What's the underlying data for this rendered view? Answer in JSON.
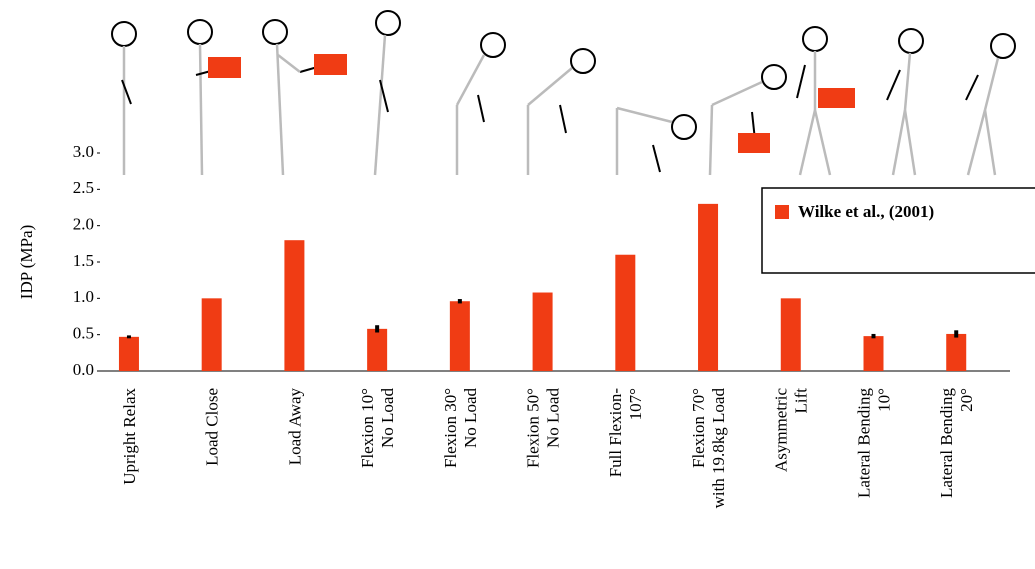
{
  "chart_data": {
    "type": "bar",
    "y_label": "IDP (MPa)",
    "categories": [
      [
        "Upright Relax"
      ],
      [
        "Load Close"
      ],
      [
        "Load Away"
      ],
      [
        "Flexion 10°",
        "No Load"
      ],
      [
        "Flexion 30°",
        "No Load"
      ],
      [
        "Flexion 50°",
        "No Load"
      ],
      [
        "Full Flexion-",
        "107°"
      ],
      [
        "Flexion 70°",
        "with 19.8kg Load"
      ],
      [
        "Asymmetric",
        "Lift"
      ],
      [
        "Lateral Bending",
        "10°"
      ],
      [
        "Lateral Bending",
        "20°"
      ]
    ],
    "series": [
      {
        "name": "Wilke et al., (2001)",
        "color": "#f03c14",
        "values": [
          0.47,
          1.0,
          1.8,
          0.58,
          0.96,
          1.08,
          1.6,
          2.3,
          1.0,
          0.48,
          0.51
        ],
        "errors": [
          0.02,
          null,
          null,
          0.05,
          0.03,
          null,
          null,
          null,
          null,
          0.03,
          0.05
        ]
      }
    ],
    "ylim": [
      0,
      3
    ],
    "yticks": [
      {
        "value": 0,
        "label": "0.0"
      },
      {
        "value": 0.5,
        "label": "0.5"
      },
      {
        "value": 1,
        "label": "1.0"
      },
      {
        "value": 1.5,
        "label": "1.5"
      },
      {
        "value": 2,
        "label": "2.0"
      },
      {
        "value": 2.5,
        "label": "2.5"
      },
      {
        "value": 3,
        "label": "3.0"
      }
    ],
    "legend": "upper-right"
  }
}
